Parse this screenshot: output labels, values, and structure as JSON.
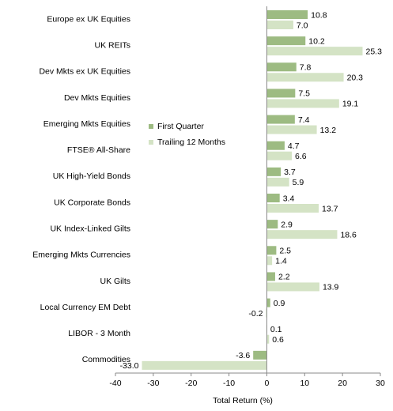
{
  "chart_data": {
    "type": "bar",
    "orientation": "horizontal",
    "categories": [
      "Europe ex UK Equities",
      "UK REITs",
      "Dev Mkts ex UK Equities",
      "Dev Mkts Equities",
      "Emerging Mkts Equities",
      "FTSE® All-Share",
      "UK High-Yield Bonds",
      "UK Corporate Bonds",
      "UK Index-Linked Gilts",
      "Emerging Mkts Currencies",
      "UK Gilts",
      "Local Currency EM Debt",
      "LIBOR - 3 Month",
      "Commodities"
    ],
    "series": [
      {
        "name": "First Quarter",
        "color": "#9dbb82",
        "values": [
          10.8,
          10.2,
          7.8,
          7.5,
          7.4,
          4.7,
          3.7,
          3.4,
          2.9,
          2.5,
          2.2,
          0.9,
          0.1,
          -3.6
        ],
        "value_labels": [
          "10.8",
          "10.2",
          "7.8",
          "7.5",
          "7.4",
          "4.7",
          "3.7",
          "3.4",
          "2.9",
          "2.5",
          "2.2",
          "0.9",
          "0.1",
          "-3.6"
        ]
      },
      {
        "name": "Trailing 12 Months",
        "color": "#d4e3c5",
        "values": [
          7.0,
          25.3,
          20.3,
          19.1,
          13.2,
          6.6,
          5.9,
          13.7,
          18.6,
          1.4,
          13.9,
          -0.2,
          0.6,
          -33.0
        ],
        "value_labels": [
          "7.0",
          "25.3",
          "20.3",
          "19.1",
          "13.2",
          "6.6",
          "5.9",
          "13.7",
          "18.6",
          "1.4",
          "13.9",
          "-0.2",
          "0.6",
          "-33.0"
        ]
      }
    ],
    "x_label": "Total Return (%)",
    "xlim": [
      -40,
      30
    ],
    "xticks": [
      -40,
      -30,
      -20,
      -10,
      0,
      10,
      20,
      30
    ],
    "legend": "center-left"
  }
}
